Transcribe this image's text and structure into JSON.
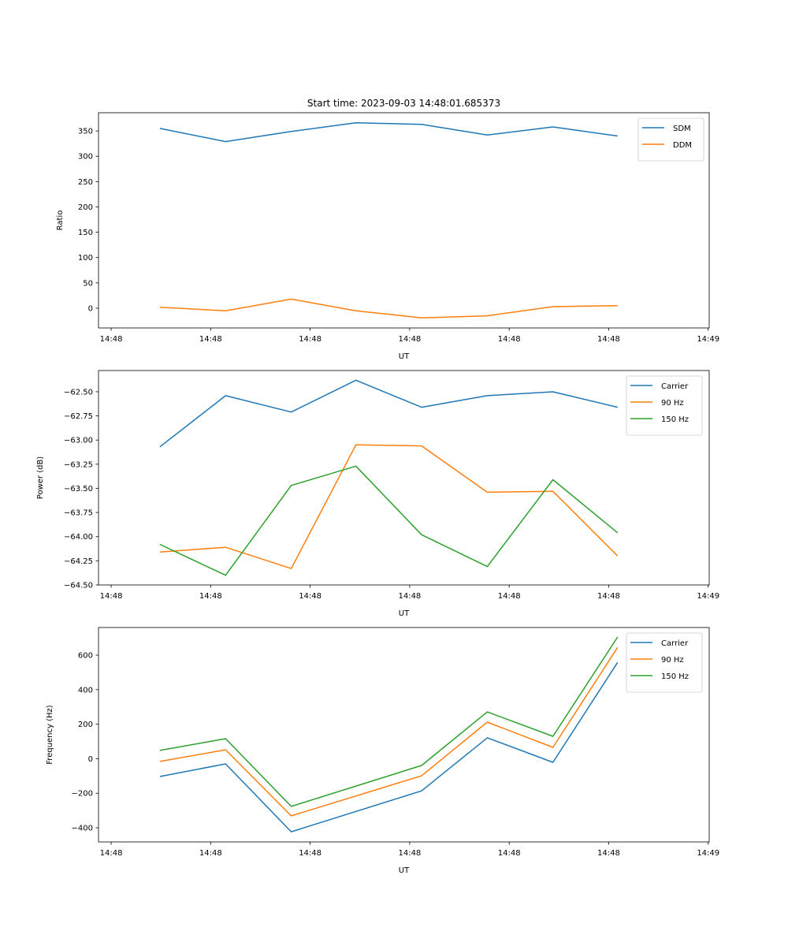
{
  "figure": {
    "title": "Start time: 2023-09-03 14:48:01.685373"
  },
  "chart_data": [
    {
      "type": "line",
      "title": "Start time: 2023-09-03 14:48:01.685373",
      "xlabel": "UT",
      "ylabel": "Ratio",
      "x_unit": "seconds after 14:48:00",
      "x": [
        4.9,
        11.5,
        18.1,
        24.6,
        31.2,
        37.8,
        44.4,
        50.9
      ],
      "xlim": [
        -1.27,
        60.1
      ],
      "xticks": [
        0,
        10,
        20,
        30,
        40,
        50,
        60
      ],
      "xtick_labels": [
        "14:48",
        "14:48",
        "14:48",
        "14:48",
        "14:48",
        "14:48",
        "14:49"
      ],
      "ylim": [
        -39,
        386
      ],
      "yticks": [
        0,
        50,
        100,
        150,
        200,
        250,
        300,
        350
      ],
      "ytick_labels": [
        "0",
        "50",
        "100",
        "150",
        "200",
        "250",
        "300",
        "350"
      ],
      "grid": false,
      "legend": "top-right",
      "series": [
        {
          "name": "SDM",
          "color": "#1f77b4",
          "values": [
            355,
            329,
            349,
            366,
            363,
            342,
            358,
            340
          ]
        },
        {
          "name": "DDM",
          "color": "#ff7f0e",
          "values": [
            2,
            -5,
            18,
            -5,
            -19,
            -15,
            3,
            5
          ]
        }
      ]
    },
    {
      "type": "line",
      "title": "",
      "xlabel": "UT",
      "ylabel": "Power (dB)",
      "x_unit": "seconds after 14:48:00",
      "x": [
        4.9,
        11.5,
        18.1,
        24.6,
        31.2,
        37.8,
        44.4,
        50.9
      ],
      "xlim": [
        -1.27,
        60.1
      ],
      "xticks": [
        0,
        10,
        20,
        30,
        40,
        50,
        60
      ],
      "xtick_labels": [
        "14:48",
        "14:48",
        "14:48",
        "14:48",
        "14:48",
        "14:48",
        "14:49"
      ],
      "ylim": [
        -64.5,
        -62.28
      ],
      "yticks": [
        -64.5,
        -64.25,
        -64.0,
        -63.75,
        -63.5,
        -63.25,
        -63.0,
        -62.75,
        -62.5
      ],
      "ytick_labels": [
        "−64.50",
        "−64.25",
        "−64.00",
        "−63.75",
        "−63.50",
        "−63.25",
        "−63.00",
        "−62.75",
        "−62.50"
      ],
      "grid": false,
      "legend": "top-right",
      "series": [
        {
          "name": "Carrier",
          "color": "#1f77b4",
          "values": [
            -63.07,
            -62.54,
            -62.71,
            -62.38,
            -62.66,
            -62.54,
            -62.5,
            -62.66
          ]
        },
        {
          "name": "90 Hz",
          "color": "#ff7f0e",
          "values": [
            -64.16,
            -64.11,
            -64.33,
            -63.05,
            -63.06,
            -63.54,
            -63.53,
            -64.2
          ]
        },
        {
          "name": "150 Hz",
          "color": "#2ca02c",
          "values": [
            -64.08,
            -64.4,
            -63.47,
            -63.27,
            -63.98,
            -64.31,
            -63.41,
            -63.96
          ]
        }
      ]
    },
    {
      "type": "line",
      "title": "",
      "xlabel": "UT",
      "ylabel": "Frequency (Hz)",
      "x_unit": "seconds after 14:48:00",
      "x": [
        4.9,
        11.5,
        18.1,
        31.2,
        37.8,
        44.4,
        50.9
      ],
      "xlim": [
        -1.27,
        60.1
      ],
      "xticks": [
        0,
        10,
        20,
        30,
        40,
        50,
        60
      ],
      "xtick_labels": [
        "14:48",
        "14:48",
        "14:48",
        "14:48",
        "14:48",
        "14:48",
        "14:49"
      ],
      "ylim": [
        -482,
        760
      ],
      "yticks": [
        -400,
        -200,
        0,
        200,
        400,
        600
      ],
      "ytick_labels": [
        "−400",
        "−200",
        "0",
        "200",
        "400",
        "600"
      ],
      "grid": false,
      "legend": "top-right",
      "series": [
        {
          "name": "Carrier",
          "color": "#1f77b4",
          "values": [
            -103,
            -30,
            -423,
            -186,
            121,
            -21,
            558
          ]
        },
        {
          "name": "90 Hz",
          "color": "#ff7f0e",
          "values": [
            -16,
            52,
            -331,
            -99,
            212,
            66,
            645
          ]
        },
        {
          "name": "150 Hz",
          "color": "#2ca02c",
          "values": [
            48,
            116,
            -276,
            -39,
            271,
            130,
            705
          ]
        }
      ]
    }
  ]
}
